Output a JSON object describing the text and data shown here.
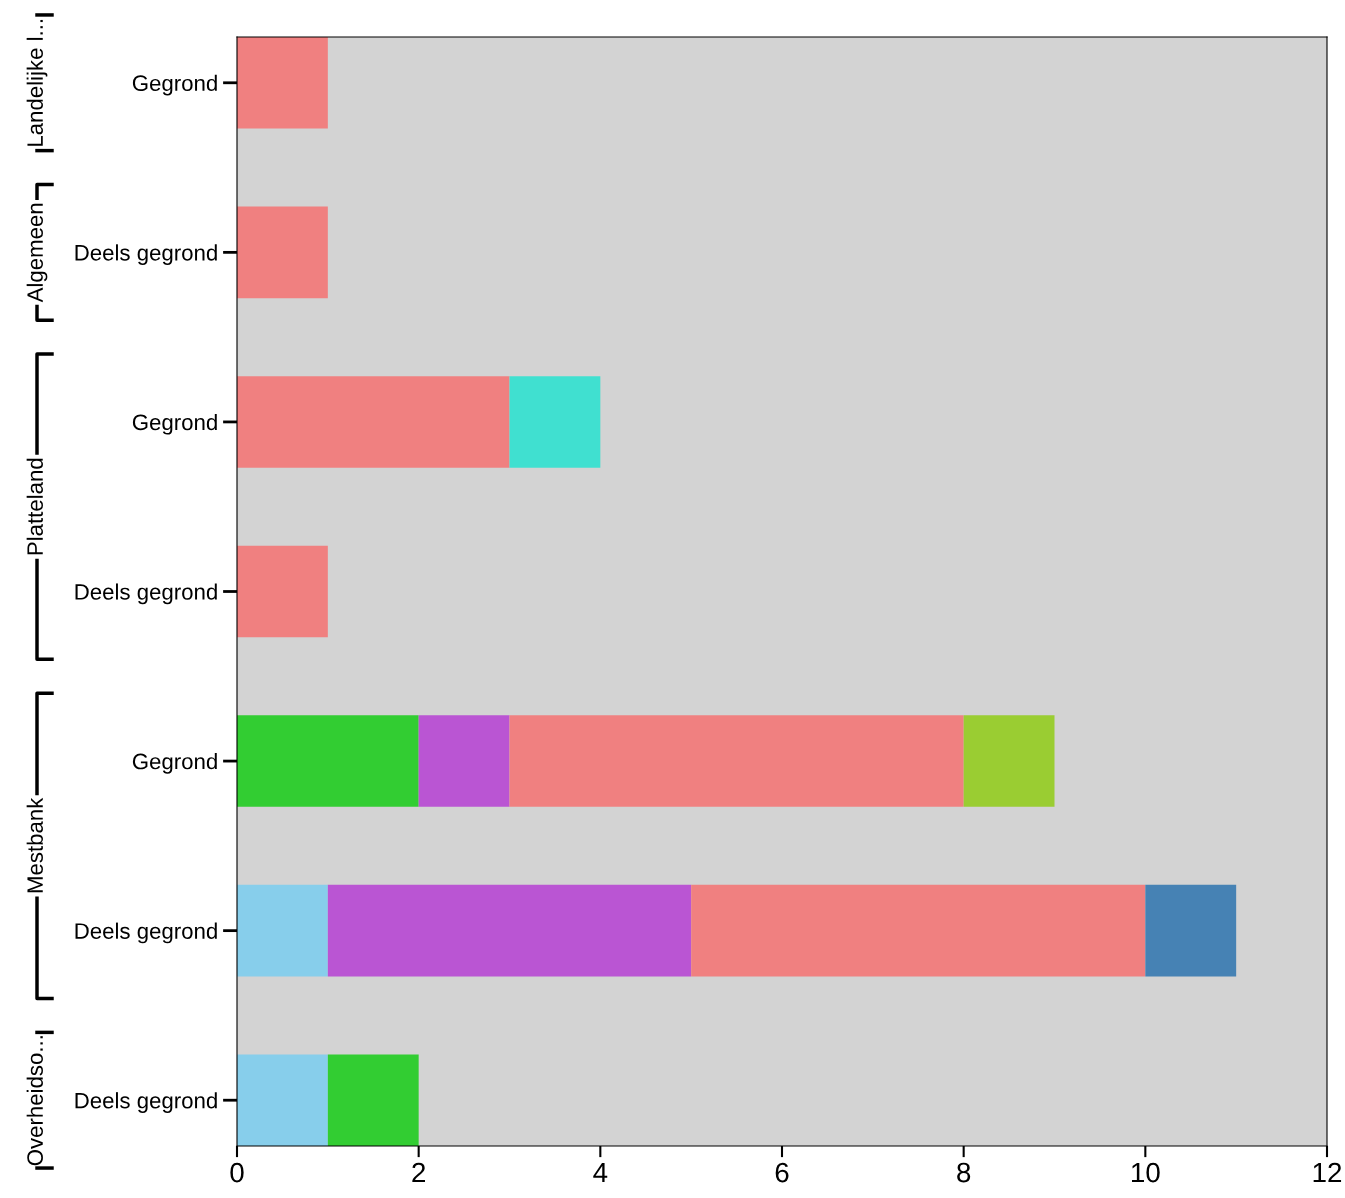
{
  "chart_data": {
    "type": "bar",
    "orientation": "horizontal",
    "stacked": true,
    "categories": [
      "Gegrond",
      "Deels gegrond",
      "Gegrond",
      "Deels gegrond",
      "Gegrond",
      "Deels gegrond",
      "Deels gegrond"
    ],
    "series": [
      {
        "color": "#87ceeb",
        "values": [
          null,
          null,
          null,
          null,
          null,
          1,
          1
        ]
      },
      {
        "color": "#32cd32",
        "values": [
          null,
          null,
          null,
          null,
          2,
          null,
          1
        ]
      },
      {
        "color": "#ba55d3",
        "values": [
          null,
          null,
          null,
          null,
          1,
          4,
          null
        ]
      },
      {
        "color": "#f08080",
        "values": [
          1,
          1,
          3,
          1,
          5,
          5,
          null
        ]
      },
      {
        "color": "#9acd32",
        "values": [
          null,
          null,
          null,
          null,
          1,
          null,
          null
        ]
      },
      {
        "color": "#4682b4",
        "values": [
          null,
          null,
          null,
          null,
          null,
          1,
          null
        ]
      },
      {
        "color": "#40e0d0",
        "values": [
          null,
          null,
          1,
          null,
          null,
          null,
          null
        ]
      }
    ],
    "annotations": [
      "Landelijke l...",
      "Algemeen",
      "Platteland",
      "Mestbank",
      "Overheidso..."
    ],
    "xlim": [
      0,
      12
    ],
    "xticks": [
      0,
      2,
      4,
      6,
      8,
      10,
      12
    ],
    "grid": false,
    "legend": false
  }
}
